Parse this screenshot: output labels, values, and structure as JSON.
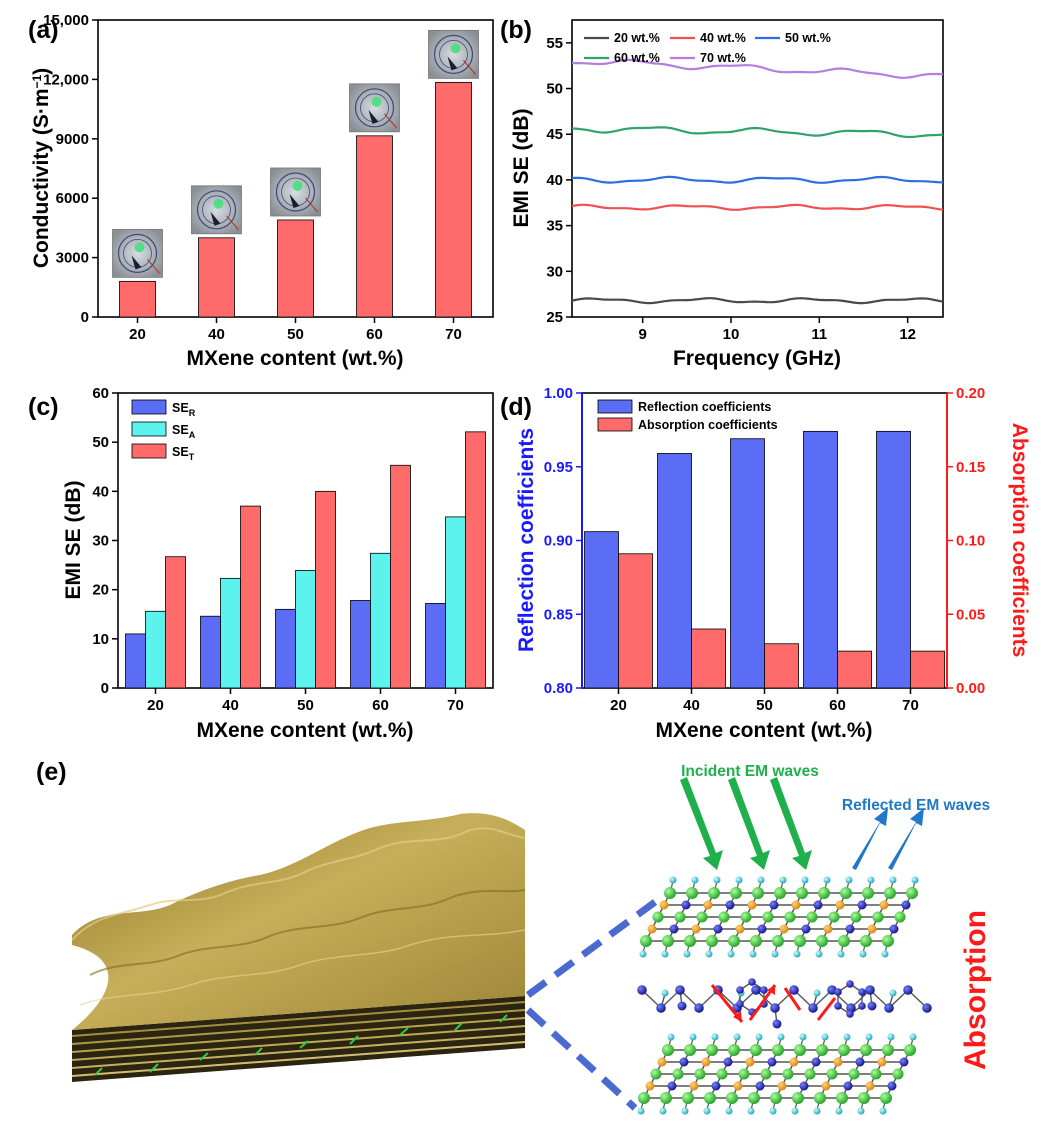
{
  "panels": {
    "a": "(a)",
    "b": "(b)",
    "c": "(c)",
    "d": "(d)",
    "e": "(e)"
  },
  "colors": {
    "pink": "#ff6b6b",
    "blue": "#5b6cf5",
    "cyan": "#5cf2ee",
    "gray_line": "#4a4a4a",
    "red_line": "#f05050",
    "blue_line": "#2b6fe0",
    "green_line": "#2fa36a",
    "purple_line": "#b57de0",
    "green_arrow": "#1faf4b",
    "blue_arrow": "#1f78c8",
    "red_text": "#ff1a1a",
    "blue_text": "#1a1aff",
    "film": "#b39b48"
  },
  "chart_data": [
    {
      "id": "a",
      "type": "bar",
      "categories": [
        "20",
        "40",
        "50",
        "60",
        "70"
      ],
      "values": [
        1800,
        4000,
        4900,
        9150,
        11850
      ],
      "xlabel": "MXene content (wt.%)",
      "ylabel": "Conductivity (S·m",
      "ylabel_sup": "−1",
      "ylabel_close": ")",
      "ylim": [
        0,
        15000
      ],
      "yticks": [
        0,
        3000,
        6000,
        9000,
        12000,
        15000
      ],
      "ytick_labels": [
        "0",
        "3000",
        "6000",
        "9000",
        "12,000",
        "15,000"
      ],
      "inset_images": "sample photos above bars"
    },
    {
      "id": "b",
      "type": "line",
      "xlabel": "Frequency (GHz)",
      "ylabel": "EMI SE (dB)",
      "xlim": [
        8.2,
        12.4
      ],
      "ylim": [
        25,
        57.5
      ],
      "xticks": [
        9,
        10,
        11,
        12
      ],
      "yticks": [
        25,
        30,
        35,
        40,
        45,
        50,
        55
      ],
      "series": [
        {
          "name": "20 wt.%",
          "mean": 26.8,
          "amp": 0.2,
          "slope": 0.0
        },
        {
          "name": "40 wt.%",
          "mean": 37.0,
          "amp": 0.2,
          "slope": 0.0
        },
        {
          "name": "50 wt.%",
          "mean": 40.0,
          "amp": 0.25,
          "slope": 0.0
        },
        {
          "name": "60 wt.%",
          "mean": 45.3,
          "amp": 0.3,
          "slope": -0.15
        },
        {
          "name": "70 wt.%",
          "mean": 52.2,
          "amp": 0.3,
          "slope": -0.4
        }
      ]
    },
    {
      "id": "c",
      "type": "bar",
      "categories": [
        "20",
        "40",
        "50",
        "60",
        "70"
      ],
      "xlabel": "MXene content (wt.%)",
      "ylabel": "EMI SE (dB)",
      "ylim": [
        0,
        60
      ],
      "yticks": [
        0,
        10,
        20,
        30,
        40,
        50,
        60
      ],
      "series": [
        {
          "name": "SE",
          "sub": "R",
          "values": [
            11.0,
            14.6,
            16.0,
            17.8,
            17.2
          ]
        },
        {
          "name": "SE",
          "sub": "A",
          "values": [
            15.6,
            22.3,
            23.9,
            27.4,
            34.8
          ]
        },
        {
          "name": "SE",
          "sub": "T",
          "values": [
            26.7,
            37.0,
            40.0,
            45.3,
            52.1
          ]
        }
      ]
    },
    {
      "id": "d",
      "type": "bar",
      "categories": [
        "20",
        "40",
        "50",
        "60",
        "70"
      ],
      "xlabel": "MXene content (wt.%)",
      "ylabel_left": "Reflection coefficients",
      "ylabel_right": "Absorption coefficients",
      "ylim_left": [
        0.8,
        1.0
      ],
      "ylim_right": [
        0.0,
        0.2
      ],
      "yticks_left": [
        "0.80",
        "0.85",
        "0.90",
        "0.95",
        "1.00"
      ],
      "yticks_right": [
        "0.00",
        "0.05",
        "0.10",
        "0.15",
        "0.20"
      ],
      "series": [
        {
          "name": "Reflection coefficients",
          "axis": "left",
          "values": [
            0.906,
            0.959,
            0.969,
            0.974,
            0.974
          ]
        },
        {
          "name": "Absorption coefficients",
          "axis": "right",
          "values": [
            0.091,
            0.04,
            0.03,
            0.025,
            0.025
          ]
        }
      ]
    }
  ],
  "schematic": {
    "incident_label": "Incident EM waves",
    "reflected_label": "Reflected EM waves",
    "absorption_label": "Absorption"
  }
}
